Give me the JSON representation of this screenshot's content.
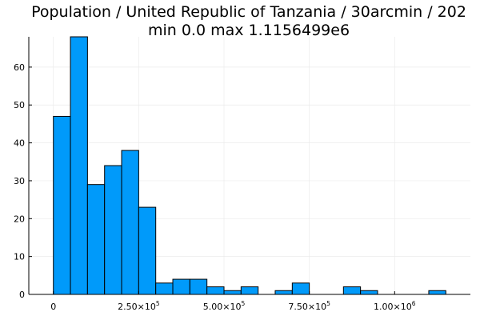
{
  "title_line_1": "Population / United Republic of Tanzania / 30arcmin / 202",
  "title_line_2": "min 0.0  max 1.1156499e6",
  "chart_data": {
    "type": "bar",
    "histogram": true,
    "title": "Population / United Republic of Tanzania / 30arcmin / 202",
    "subtitle": "min 0.0  max 1.1156499e6",
    "xlabel": "",
    "ylabel": "",
    "bin_width": 50000,
    "bins": [
      [
        0,
        50000
      ],
      [
        50000,
        100000
      ],
      [
        100000,
        150000
      ],
      [
        150000,
        200000
      ],
      [
        200000,
        250000
      ],
      [
        250000,
        300000
      ],
      [
        300000,
        350000
      ],
      [
        350000,
        400000
      ],
      [
        400000,
        450000
      ],
      [
        450000,
        500000
      ],
      [
        500000,
        550000
      ],
      [
        550000,
        600000
      ],
      [
        600000,
        650000
      ],
      [
        650000,
        700000
      ],
      [
        700000,
        750000
      ],
      [
        750000,
        800000
      ],
      [
        800000,
        850000
      ],
      [
        850000,
        900000
      ],
      [
        900000,
        950000
      ],
      [
        950000,
        1000000
      ],
      [
        1000000,
        1050000
      ],
      [
        1050000,
        1100000
      ],
      [
        1100000,
        1150000
      ]
    ],
    "values": [
      47,
      68,
      29,
      34,
      38,
      23,
      3,
      4,
      4,
      2,
      1,
      2,
      0,
      1,
      3,
      0,
      0,
      2,
      1,
      0,
      0,
      0,
      1
    ],
    "xlim": [
      -72000,
      1222000
    ],
    "ylim": [
      0,
      68
    ],
    "xticks": [
      {
        "value": 0,
        "mantissa": "0",
        "exp": ""
      },
      {
        "value": 250000,
        "mantissa": "2.50×10",
        "exp": "5"
      },
      {
        "value": 500000,
        "mantissa": "5.00×10",
        "exp": "5"
      },
      {
        "value": 750000,
        "mantissa": "7.50×10",
        "exp": "5"
      },
      {
        "value": 1000000,
        "mantissa": "1.00×10",
        "exp": "6"
      }
    ],
    "yticks": [
      0,
      10,
      20,
      30,
      40,
      50,
      60
    ],
    "grid": true,
    "legend": "none",
    "colors": {
      "bar_fill": "#009AFA",
      "bar_edge": "#000000",
      "grid": "#EBEBEB",
      "axis": "#000000"
    }
  }
}
